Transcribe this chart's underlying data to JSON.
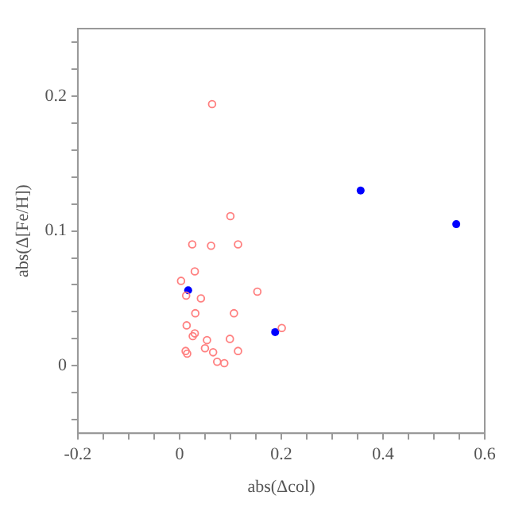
{
  "chart_data": {
    "type": "scatter",
    "xlabel": "abs(Δcol)",
    "ylabel": "abs(Δ[Fe/H])",
    "xlim": [
      -0.2,
      0.6
    ],
    "ylim": [
      -0.05,
      0.25
    ],
    "xticks": [
      -0.2,
      {
        "value": -0.15,
        "label": null
      },
      {
        "value": -0.1,
        "label": null
      },
      {
        "value": -0.05,
        "label": null
      },
      0,
      {
        "value": 0.05,
        "label": null
      },
      {
        "value": 0.1,
        "label": null
      },
      {
        "value": 0.15,
        "label": null
      },
      0.2,
      {
        "value": 0.25,
        "label": null
      },
      {
        "value": 0.3,
        "label": null
      },
      {
        "value": 0.35,
        "label": null
      },
      0.4,
      {
        "value": 0.45,
        "label": null
      },
      {
        "value": 0.5,
        "label": null
      },
      {
        "value": 0.55,
        "label": null
      },
      0.6
    ],
    "yticks": [
      {
        "value": -0.04,
        "label": null
      },
      {
        "value": -0.02,
        "label": null
      },
      0,
      {
        "value": 0.02,
        "label": null
      },
      {
        "value": 0.04,
        "label": null
      },
      {
        "value": 0.06,
        "label": null
      },
      {
        "value": 0.08,
        "label": null
      },
      0.1,
      {
        "value": 0.12,
        "label": null
      },
      {
        "value": 0.14,
        "label": null
      },
      {
        "value": 0.16,
        "label": null
      },
      {
        "value": 0.18,
        "label": null
      },
      0.2,
      {
        "value": 0.22,
        "label": null
      },
      {
        "value": 0.24,
        "label": null
      }
    ],
    "grid": false,
    "legend": false,
    "marker": "circle",
    "series": [
      {
        "color": "#ff7f7f",
        "x": [
          0.025,
          0.062,
          0.115,
          0.03,
          0.003,
          0.013,
          0.042,
          0.153,
          0.031,
          0.107,
          0.014,
          0.03,
          0.026,
          0.054,
          0.099,
          0.201,
          0.012,
          0.015,
          0.05,
          0.066,
          0.115,
          0.074,
          0.088,
          0.064,
          0.1
        ],
        "values": [
          0.09,
          0.089,
          0.09,
          0.07,
          0.063,
          0.052,
          0.05,
          0.055,
          0.039,
          0.039,
          0.03,
          0.024,
          0.022,
          0.019,
          0.02,
          0.028,
          0.011,
          0.009,
          0.013,
          0.01,
          0.011,
          0.003,
          0.002,
          0.194,
          0.111
        ]
      },
      {
        "color": "#0000ff",
        "x": [
          0.017,
          0.188,
          0.356,
          0.544
        ],
        "values": [
          0.056,
          0.025,
          0.13,
          0.105
        ]
      }
    ]
  }
}
